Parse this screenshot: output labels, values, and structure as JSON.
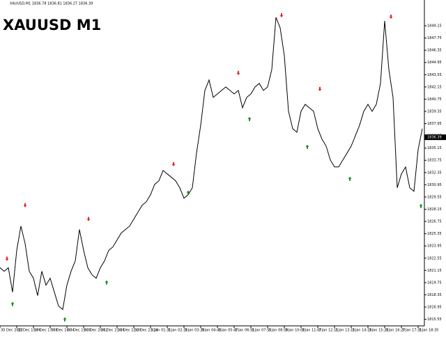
{
  "chart_data": {
    "type": "line",
    "header": "XAUUSD,M1 1836.78 1836.81 1836.27 1836.39",
    "title": "XAUUSD M1",
    "x": [
      0,
      1,
      2,
      3,
      4,
      5,
      6,
      7,
      8,
      9,
      10,
      11,
      12,
      13,
      14,
      15,
      16,
      17,
      18,
      19,
      20,
      21,
      22,
      23,
      24,
      25,
      26,
      27,
      28,
      29,
      30,
      31,
      32,
      33,
      34,
      35,
      36,
      37,
      38,
      39,
      40,
      41,
      42,
      43,
      44,
      45,
      46,
      47,
      48,
      49,
      50,
      51,
      52,
      53,
      54,
      55,
      56,
      57,
      58,
      59,
      60,
      61,
      62,
      63,
      64,
      65,
      66,
      67,
      68,
      69,
      70,
      71,
      72,
      73,
      74,
      75,
      76,
      77,
      78,
      79,
      80,
      81,
      82,
      83,
      84,
      85,
      86,
      87,
      88,
      89,
      90,
      91,
      92,
      93,
      94,
      95,
      96,
      97,
      98,
      99,
      100,
      101
    ],
    "series": [
      {
        "color": "#000000",
        "values": [
          1821.45,
          1821.05,
          1821.45,
          1818.66,
          1823.44,
          1826.22,
          1824.23,
          1821.05,
          1820.25,
          1818.26,
          1821.05,
          1819.46,
          1820.25,
          1818.66,
          1817.07,
          1816.67,
          1819.46,
          1821.05,
          1822.24,
          1825.83,
          1823.44,
          1821.45,
          1820.65,
          1820.25,
          1821.45,
          1822.24,
          1823.44,
          1823.84,
          1824.63,
          1825.43,
          1825.83,
          1826.22,
          1827.02,
          1827.82,
          1828.61,
          1829.01,
          1829.81,
          1831.0,
          1831.4,
          1832.59,
          1832.19,
          1831.8,
          1831.4,
          1830.6,
          1829.41,
          1829.81,
          1830.6,
          1834.58,
          1837.77,
          1841.75,
          1842.94,
          1840.95,
          1841.35,
          1841.75,
          1842.15,
          1841.75,
          1841.35,
          1841.75,
          1839.76,
          1840.95,
          1841.35,
          1842.15,
          1842.55,
          1841.75,
          1842.15,
          1844.14,
          1850.11,
          1848.92,
          1845.73,
          1839.36,
          1837.37,
          1836.97,
          1839.36,
          1840.16,
          1839.76,
          1839.36,
          1837.37,
          1836.18,
          1835.38,
          1833.79,
          1832.99,
          1832.99,
          1833.79,
          1834.58,
          1835.38,
          1836.57,
          1837.77,
          1839.36,
          1840.16,
          1839.36,
          1840.16,
          1842.55,
          1849.71,
          1844.14,
          1840.95,
          1830.6,
          1832.19,
          1832.99,
          1830.6,
          1830.2,
          1834.98,
          1837.37
        ]
      }
    ],
    "sell_signals": {
      "color": "#e8231f",
      "x": [
        1.67,
        6,
        21.17,
        41.5,
        57,
        67.33,
        76.5,
        93.5
      ],
      "values": [
        1822.48,
        1828.61,
        1827.02,
        1833.31,
        1843.74,
        1850.35,
        1841.91,
        1850.19
      ]
    },
    "buy_signals": {
      "color": "#1e8f1e",
      "x": [
        3,
        15.5,
        25.5,
        45,
        59.67,
        73.5,
        83.67,
        100.67
      ],
      "values": [
        1817.31,
        1815.55,
        1819.77,
        1830.05,
        1838.48,
        1835.3,
        1831.64,
        1828.53
      ]
    },
    "last_price": 1836.39,
    "xlim": [
      0,
      101.5
    ],
    "ylim": [
      1814.8,
      1852.1
    ],
    "yticks": [
      1815.55,
      1816.95,
      1818.35,
      1819.75,
      1821.15,
      1822.55,
      1823.95,
      1825.35,
      1826.75,
      1828.15,
      1829.55,
      1830.95,
      1832.35,
      1833.75,
      1835.15,
      1836.55,
      1837.95,
      1839.35,
      1840.75,
      1842.15,
      1843.55,
      1844.95,
      1846.35,
      1847.75,
      1849.15
    ],
    "xticks": [
      {
        "value": 0,
        "label": "30 Dec 2022"
      },
      {
        "value": 4,
        "label": "30 Dec 15:56"
      },
      {
        "value": 8,
        "label": "30 Dec 17:08"
      },
      {
        "value": 12,
        "label": "30 Dec 18:04"
      },
      {
        "value": 16,
        "label": "30 Dec 19:08"
      },
      {
        "value": 20,
        "label": "30 Dec 20:12"
      },
      {
        "value": 24,
        "label": "30 Dec 21:16"
      },
      {
        "value": 28,
        "label": "30 Dec 22:20"
      },
      {
        "value": 32,
        "label": "30 Dec 23:24"
      },
      {
        "value": 36,
        "label": "3 Jan 01:31"
      },
      {
        "value": 40,
        "label": "3 Jan 02:35"
      },
      {
        "value": 44,
        "label": "3 Jan 03:39"
      },
      {
        "value": 48,
        "label": "3 Jan 04:43"
      },
      {
        "value": 52,
        "label": "3 Jan 05:47"
      },
      {
        "value": 56,
        "label": "3 Jan 06:51"
      },
      {
        "value": 60,
        "label": "3 Jan 07:55"
      },
      {
        "value": 64,
        "label": "3 Jan 08:59"
      },
      {
        "value": 68,
        "label": "3 Jan 10:03"
      },
      {
        "value": 72,
        "label": "3 Jan 11:07"
      },
      {
        "value": 76,
        "label": "3 Jan 12:11"
      },
      {
        "value": 80,
        "label": "3 Jan 13:15"
      },
      {
        "value": 84,
        "label": "3 Jan 14:19"
      },
      {
        "value": 88,
        "label": "3 Jan 15:23"
      },
      {
        "value": 92,
        "label": "3 Jan 16:27"
      },
      {
        "value": 96,
        "label": "3 Jan 17:31"
      },
      {
        "value": 100,
        "label": "3 Jan 18:35"
      }
    ]
  }
}
